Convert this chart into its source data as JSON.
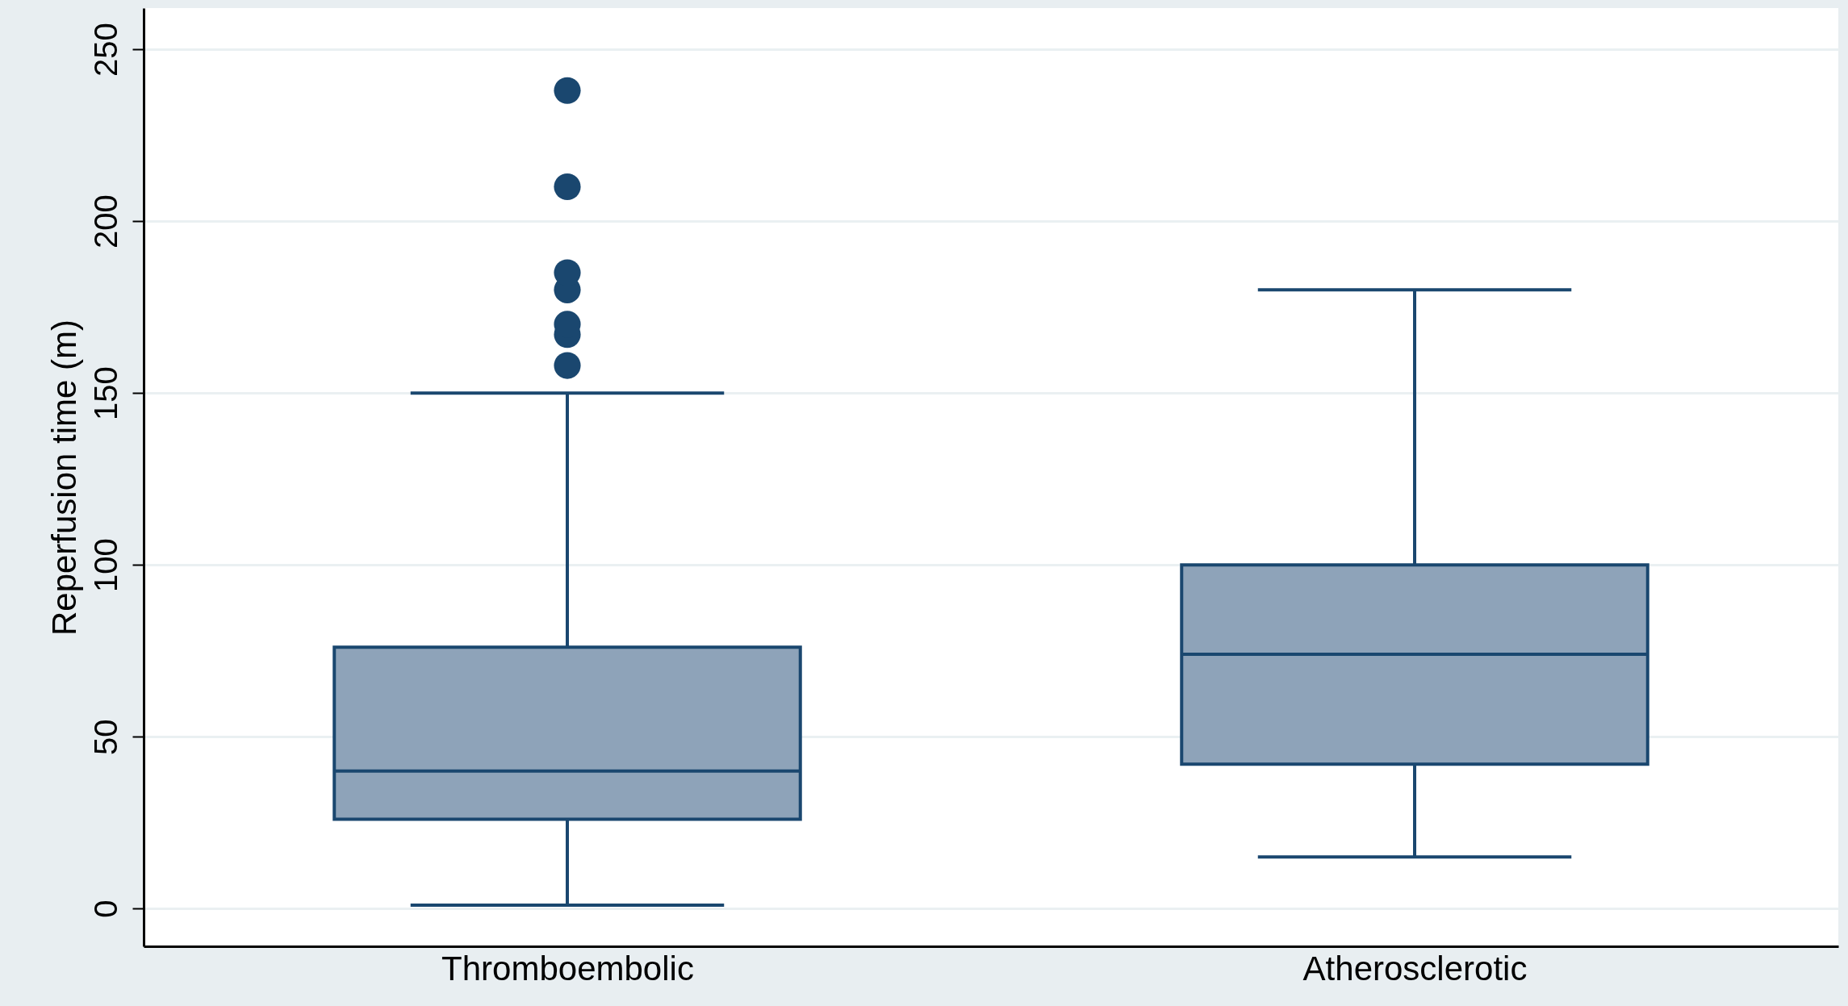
{
  "chart_data": {
    "type": "box",
    "ylabel": "Reperfusion time (m)",
    "categories": [
      "Thromboembolic",
      "Atherosclerotic"
    ],
    "series": [
      {
        "color": "#8ea3b9",
        "boxes": [
          {
            "low": 1,
            "q1": 26,
            "median": 40,
            "q3": 76,
            "high": 150,
            "outliers": [
              158,
              167,
              170,
              180,
              185,
              210,
              238
            ]
          },
          {
            "low": 15,
            "q1": 42,
            "median": 74,
            "q3": 100,
            "high": 180
          }
        ]
      }
    ],
    "ylim": [
      -11,
      262
    ],
    "yticks": [
      0,
      50,
      100,
      150,
      200,
      250
    ],
    "grid": "y"
  }
}
